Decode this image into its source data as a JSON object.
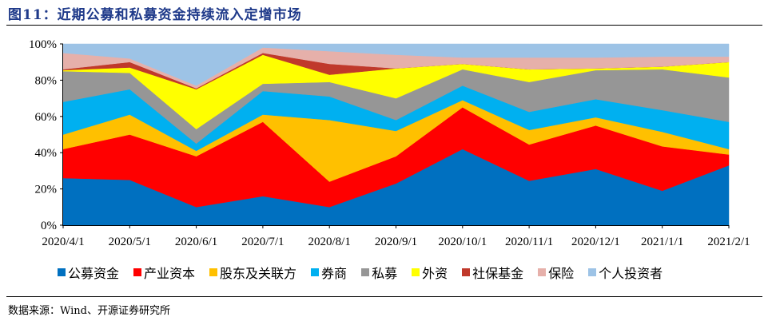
{
  "header": {
    "title": "图11：近期公募和私募资金持续流入定增市场"
  },
  "footer": {
    "source": "数据来源：Wind、开源证券研究所"
  },
  "chart_data": {
    "type": "area",
    "stacked": true,
    "percent": true,
    "title": "图11：近期公募和私募资金持续流入定增市场",
    "xlabel": "",
    "ylabel": "",
    "ylim": [
      0,
      100
    ],
    "y_ticks": [
      "0%",
      "20%",
      "40%",
      "60%",
      "80%",
      "100%"
    ],
    "grid": false,
    "legend_position": "bottom",
    "categories": [
      "2020/4/1",
      "2020/5/1",
      "2020/6/1",
      "2020/7/1",
      "2020/8/1",
      "2020/9/1",
      "2020/10/1",
      "2020/11/1",
      "2020/12/1",
      "2021/1/1",
      "2021/2/1"
    ],
    "series": [
      {
        "name": "公募资金",
        "color": "#0070c0",
        "values": [
          26,
          25,
          10,
          16,
          10,
          23,
          42,
          24.5,
          31,
          19,
          33
        ]
      },
      {
        "name": "产业资本",
        "color": "#ff0000",
        "values": [
          16,
          25,
          28,
          41,
          14,
          15,
          23,
          20,
          24,
          24.5,
          6
        ]
      },
      {
        "name": "股东及关联方",
        "color": "#ffc000",
        "values": [
          8,
          11,
          3,
          4,
          34,
          14,
          4,
          8,
          4.5,
          8,
          3
        ]
      },
      {
        "name": "券商",
        "color": "#00b0f0",
        "values": [
          18,
          14,
          4,
          13,
          13,
          6,
          8,
          10,
          10,
          12,
          15
        ]
      },
      {
        "name": "私募",
        "color": "#969696",
        "values": [
          17,
          9,
          8,
          4,
          8,
          12,
          9,
          16.5,
          16,
          22.5,
          24.5
        ]
      },
      {
        "name": "外资",
        "color": "#ffff00",
        "values": [
          0.5,
          3,
          22,
          16,
          4,
          16.5,
          3,
          7,
          1,
          1.5,
          8.5
        ]
      },
      {
        "name": "社保基金",
        "color": "#c0392b",
        "values": [
          0.5,
          3,
          0.5,
          1,
          6,
          0,
          0,
          0,
          0,
          0,
          0
        ]
      },
      {
        "name": "保险",
        "color": "#e6b0aa",
        "values": [
          9,
          2,
          1.5,
          3,
          7,
          7.5,
          3.5,
          6.5,
          6,
          5.5,
          3
        ]
      },
      {
        "name": "个人投资者",
        "color": "#9dc3e6",
        "values": [
          5,
          8,
          23,
          2,
          4,
          6,
          7.5,
          7.5,
          7.5,
          7,
          7
        ]
      }
    ]
  }
}
